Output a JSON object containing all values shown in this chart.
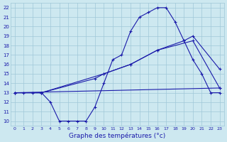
{
  "background_color": "#cde8f0",
  "grid_color": "#a0c8d8",
  "line_color": "#1a1aaa",
  "title": "Graphe des températures (°c)",
  "xlim": [
    -0.5,
    23.5
  ],
  "ylim": [
    9.5,
    22.5
  ],
  "yticks": [
    10,
    11,
    12,
    13,
    14,
    15,
    16,
    17,
    18,
    19,
    20,
    21,
    22
  ],
  "xticks": [
    0,
    1,
    2,
    3,
    4,
    5,
    6,
    7,
    8,
    9,
    10,
    11,
    12,
    13,
    14,
    15,
    16,
    17,
    18,
    19,
    20,
    21,
    22,
    23
  ],
  "line1_x": [
    0,
    1,
    2,
    3,
    4,
    5,
    6,
    7,
    8,
    9,
    10,
    11,
    12,
    13,
    14,
    15,
    16,
    17,
    18,
    19,
    20,
    21,
    22,
    23
  ],
  "line1_y": [
    13,
    13,
    13,
    13,
    12,
    10,
    10,
    10,
    10,
    11.5,
    14,
    16.5,
    17,
    19.5,
    21,
    21.5,
    22,
    22,
    20.5,
    18.5,
    16.5,
    15,
    13,
    13
  ],
  "line2_x": [
    0,
    23
  ],
  "line2_y": [
    13,
    13.5
  ],
  "line3_x": [
    0,
    3,
    9,
    10,
    13,
    16,
    19,
    20,
    23
  ],
  "line3_y": [
    13,
    13,
    14.5,
    15,
    16,
    17.5,
    18.5,
    19,
    15.5
  ],
  "line4_x": [
    0,
    3,
    10,
    13,
    16,
    20,
    23
  ],
  "line4_y": [
    13,
    13,
    15,
    16,
    17.5,
    18.5,
    13.5
  ]
}
